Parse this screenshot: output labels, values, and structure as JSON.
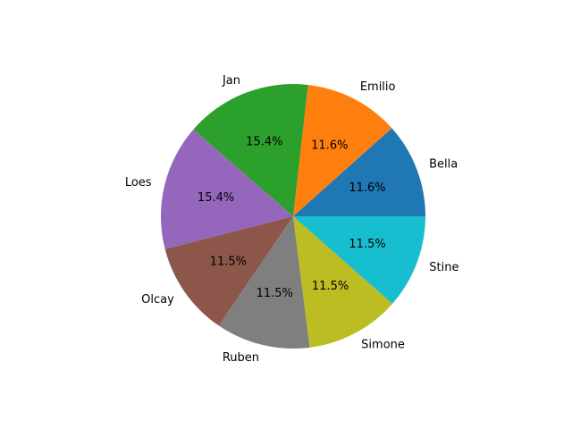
{
  "chart_data": {
    "type": "pie",
    "title": "",
    "categories": [
      "Bella",
      "Emilio",
      "Jan",
      "Loes",
      "Olcay",
      "Ruben",
      "Simone",
      "Stine"
    ],
    "values": [
      11.6,
      11.6,
      15.4,
      15.4,
      11.5,
      11.5,
      11.5,
      11.5
    ],
    "percent_labels": [
      "11.6%",
      "11.6%",
      "15.4%",
      "15.4%",
      "11.5%",
      "11.5%",
      "11.5%",
      "11.5%"
    ],
    "colors": [
      "#1f77b4",
      "#ff7f0e",
      "#2ca02c",
      "#9467bd",
      "#8c564b",
      "#7f7f7f",
      "#bcbd22",
      "#17becf"
    ],
    "start_angle_deg": 0,
    "direction": "counterclockwise",
    "legend": "none"
  }
}
